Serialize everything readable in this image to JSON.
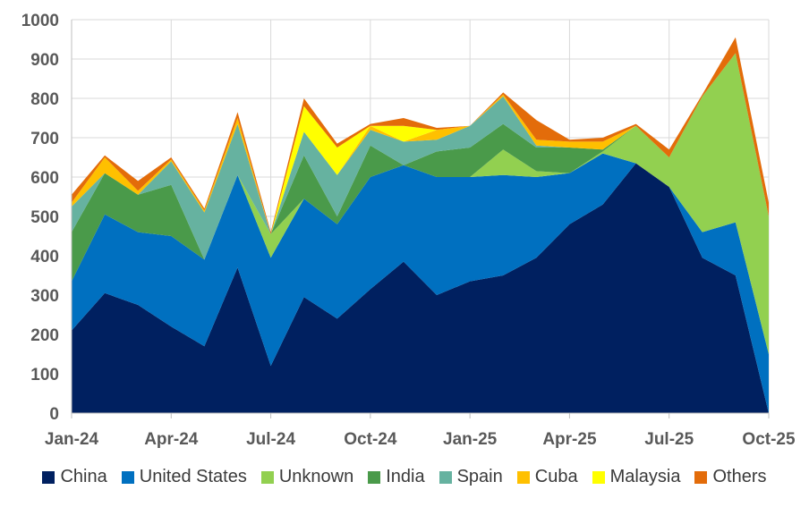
{
  "chart_data": {
    "type": "area",
    "stacked": true,
    "x": [
      "Jan-24",
      "Feb-24",
      "Mar-24",
      "Apr-24",
      "May-24",
      "Jun-24",
      "Jul-24",
      "Aug-24",
      "Sep-24",
      "Oct-24",
      "Nov-24",
      "Dec-24",
      "Jan-25",
      "Feb-25",
      "Mar-25",
      "Apr-25",
      "May-25",
      "Jun-25",
      "Jul-25",
      "Aug-25",
      "Sep-25",
      "Oct-25"
    ],
    "xticks": [
      "Jan-24",
      "Apr-24",
      "Jul-24",
      "Oct-24",
      "Jan-25",
      "Apr-25",
      "Jul-25",
      "Oct-25"
    ],
    "ylim": [
      0,
      1000
    ],
    "yticks": [
      0,
      100,
      200,
      300,
      400,
      500,
      600,
      700,
      800,
      900,
      1000
    ],
    "grid": true,
    "legend_position": "bottom",
    "series": [
      {
        "name": "China",
        "color": "#002060",
        "values": [
          210,
          305,
          275,
          220,
          170,
          370,
          120,
          295,
          240,
          315,
          385,
          300,
          335,
          350,
          395,
          480,
          530,
          635,
          575,
          395,
          350,
          0
        ]
      },
      {
        "name": "United States",
        "color": "#0070C0",
        "values": [
          125,
          200,
          185,
          230,
          220,
          235,
          275,
          250,
          240,
          285,
          245,
          300,
          265,
          255,
          205,
          130,
          130,
          0,
          0,
          65,
          135,
          150
        ]
      },
      {
        "name": "Unknown",
        "color": "#92D050",
        "values": [
          0,
          0,
          0,
          0,
          0,
          0,
          60,
          0,
          0,
          0,
          0,
          0,
          0,
          65,
          15,
          0,
          5,
          95,
          75,
          345,
          430,
          350
        ]
      },
      {
        "name": "India",
        "color": "#4A9A4A",
        "values": [
          125,
          105,
          95,
          130,
          0,
          0,
          0,
          110,
          20,
          80,
          0,
          65,
          75,
          65,
          60,
          65,
          5,
          0,
          0,
          0,
          0,
          0
        ]
      },
      {
        "name": "Spain",
        "color": "#66B2A0",
        "values": [
          65,
          0,
          0,
          60,
          120,
          130,
          0,
          60,
          105,
          40,
          60,
          30,
          55,
          70,
          5,
          0,
          0,
          0,
          0,
          0,
          0,
          0
        ]
      },
      {
        "name": "Cuba",
        "color": "#FFC000",
        "values": [
          10,
          40,
          10,
          5,
          5,
          15,
          0,
          0,
          0,
          10,
          0,
          25,
          0,
          5,
          15,
          15,
          20,
          0,
          0,
          0,
          0,
          0
        ]
      },
      {
        "name": "Malaysia",
        "color": "#FFFF00",
        "values": [
          0,
          0,
          0,
          0,
          0,
          0,
          0,
          65,
          70,
          0,
          40,
          0,
          0,
          0,
          0,
          0,
          0,
          0,
          0,
          0,
          0,
          0
        ]
      },
      {
        "name": "Others",
        "color": "#E36C0A",
        "values": [
          20,
          5,
          25,
          5,
          5,
          15,
          5,
          20,
          10,
          5,
          20,
          5,
          0,
          5,
          50,
          5,
          10,
          5,
          20,
          5,
          40,
          35
        ]
      }
    ]
  }
}
